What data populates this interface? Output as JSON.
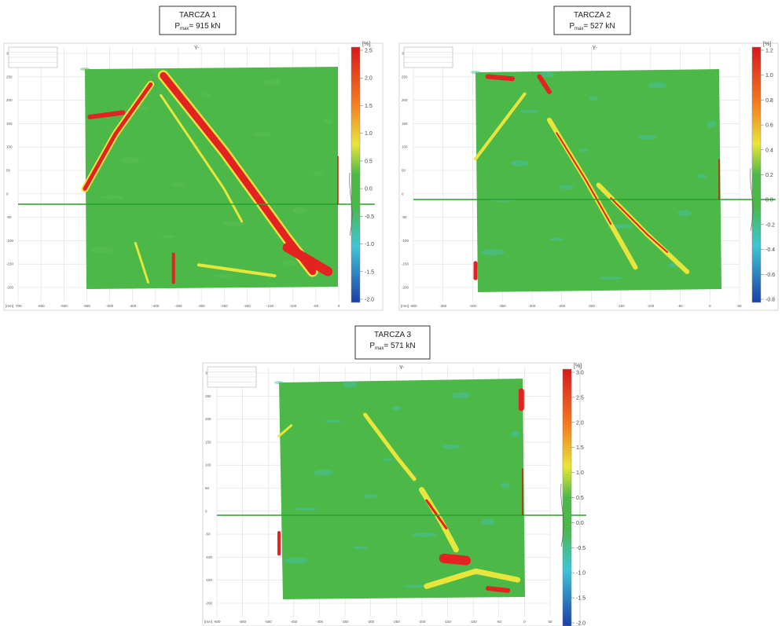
{
  "panels": [
    {
      "title": "TARCZA 1",
      "pmax_symbol": "P",
      "pmax_subscript": "max",
      "pmax_value": "= 915 kN",
      "axis_label": "Y-",
      "unit": "[%]",
      "axis_unit": "[mm]",
      "scale_ticks": [
        "2.5",
        "2.0",
        "1.5",
        "1.0",
        "0.5",
        "0.0",
        "-0.5",
        "-1.0",
        "-1.5",
        "-2.0"
      ],
      "x_ticks": [
        "-700",
        "-650",
        "-600",
        "-550",
        "-500",
        "-450",
        "-400",
        "-350",
        "-300",
        "-250",
        "-200",
        "-150",
        "-100",
        "-50",
        "0"
      ],
      "y_ticks": [
        "300",
        "250",
        "200",
        "150",
        "100",
        "50",
        "0",
        "-50",
        "-100",
        "-150",
        "-200"
      ]
    },
    {
      "title": "TARCZA 2",
      "pmax_symbol": "P",
      "pmax_subscript": "max",
      "pmax_value": "= 527 kN",
      "axis_label": "Y-",
      "unit": "[%]",
      "axis_unit": "[mm]",
      "scale_ticks": [
        "1.2",
        "1.0",
        "0.8",
        "0.6",
        "0.4",
        "0.2",
        "0.0",
        "-0.2",
        "-0.4",
        "-0.6",
        "-0.8"
      ],
      "x_ticks": [
        "-500",
        "-450",
        "-400",
        "-350",
        "-300",
        "-250",
        "-200",
        "-150",
        "-100",
        "-50",
        "0",
        "50"
      ],
      "y_ticks": [
        "300",
        "250",
        "200",
        "150",
        "100",
        "50",
        "0",
        "-50",
        "-100",
        "-150",
        "-200"
      ]
    },
    {
      "title": "TARCZA 3",
      "pmax_symbol": "P",
      "pmax_subscript": "max",
      "pmax_value": "= 571 kN",
      "axis_label": "Y-",
      "unit": "[%]",
      "axis_unit": "[mm]",
      "scale_ticks": [
        "3.0",
        "2.5",
        "2.0",
        "1.5",
        "1.0",
        "0.5",
        "0.0",
        "-0.5",
        "-1.0",
        "-1.5",
        "-2.0"
      ],
      "x_ticks": [
        "-600",
        "-550",
        "-500",
        "-450",
        "-400",
        "-350",
        "-300",
        "-250",
        "-200",
        "-150",
        "-100",
        "-50",
        "0",
        "50"
      ],
      "y_ticks": [
        "300",
        "250",
        "200",
        "150",
        "100",
        "50",
        "0",
        "-50",
        "-100",
        "-150",
        "-200"
      ]
    }
  ]
}
